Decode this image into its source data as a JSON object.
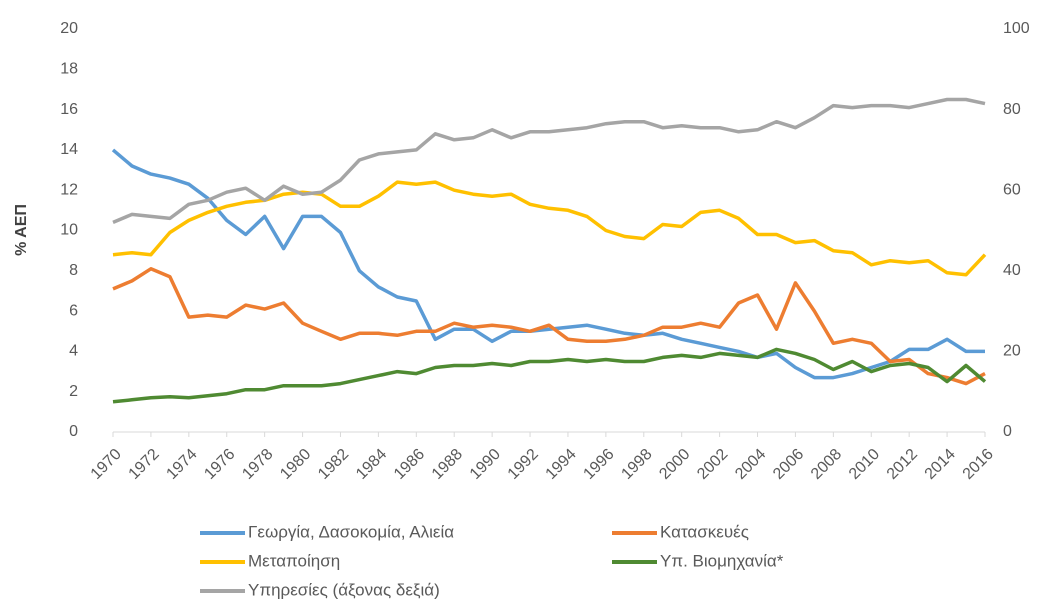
{
  "chart_data": {
    "type": "line",
    "y_label": "% ΑΕΠ",
    "x": [
      1970,
      1971,
      1972,
      1973,
      1974,
      1975,
      1976,
      1977,
      1978,
      1979,
      1980,
      1981,
      1982,
      1983,
      1984,
      1985,
      1986,
      1987,
      1988,
      1989,
      1990,
      1991,
      1992,
      1993,
      1994,
      1995,
      1996,
      1997,
      1998,
      1999,
      2000,
      2001,
      2002,
      2003,
      2004,
      2005,
      2006,
      2007,
      2008,
      2009,
      2010,
      2011,
      2012,
      2013,
      2014,
      2015,
      2016
    ],
    "xlim": [
      1970,
      2016
    ],
    "xticks": [
      1970,
      1972,
      1974,
      1976,
      1978,
      1980,
      1982,
      1984,
      1986,
      1988,
      1990,
      1992,
      1994,
      1996,
      1998,
      2000,
      2002,
      2004,
      2006,
      2008,
      2010,
      2012,
      2014,
      2016
    ],
    "ylim": [
      0,
      20
    ],
    "yticks": [
      0,
      2,
      4,
      6,
      8,
      10,
      12,
      14,
      16,
      18,
      20
    ],
    "y2lim": [
      0,
      100
    ],
    "y2ticks": [
      0,
      20,
      40,
      60,
      80,
      100
    ],
    "grid": false,
    "legend": "bottom",
    "series": [
      {
        "name": "Γεωργία, Δασοκομία, Αλιεία",
        "color": "#5b9bd5",
        "values": [
          14.0,
          13.2,
          12.8,
          12.6,
          12.3,
          11.6,
          10.5,
          9.8,
          10.7,
          9.1,
          10.7,
          10.7,
          9.9,
          8.0,
          7.2,
          6.7,
          6.5,
          4.6,
          5.1,
          5.1,
          4.5,
          5.0,
          5.0,
          5.1,
          5.2,
          5.3,
          5.1,
          4.9,
          4.8,
          4.9,
          4.6,
          4.4,
          4.2,
          4.0,
          3.7,
          3.9,
          3.2,
          2.7,
          2.7,
          2.9,
          3.2,
          3.5,
          4.1,
          4.1,
          4.6,
          4.0,
          4.0
        ]
      },
      {
        "name": "Κατασκευές",
        "color": "#ed7d31",
        "values": [
          7.1,
          7.5,
          8.1,
          7.7,
          5.7,
          5.8,
          5.7,
          6.3,
          6.1,
          6.4,
          5.4,
          5.0,
          4.6,
          4.9,
          4.9,
          4.8,
          5.0,
          5.0,
          5.4,
          5.2,
          5.3,
          5.2,
          5.0,
          5.3,
          4.6,
          4.5,
          4.5,
          4.6,
          4.8,
          5.2,
          5.2,
          5.4,
          5.2,
          6.4,
          6.8,
          5.1,
          7.4,
          6.0,
          4.4,
          4.6,
          4.4,
          3.5,
          3.6,
          2.9,
          2.7,
          2.4,
          2.9
        ]
      },
      {
        "name": "Μεταποίηση",
        "color": "#ffc000",
        "values": [
          8.8,
          8.9,
          8.8,
          9.9,
          10.5,
          10.9,
          11.2,
          11.4,
          11.5,
          11.8,
          11.9,
          11.8,
          11.2,
          11.2,
          11.7,
          12.4,
          12.3,
          12.4,
          12.0,
          11.8,
          11.7,
          11.8,
          11.3,
          11.1,
          11.0,
          10.7,
          10.0,
          9.7,
          9.6,
          10.3,
          10.2,
          10.9,
          11.0,
          10.6,
          9.8,
          9.8,
          9.4,
          9.5,
          9.0,
          8.9,
          8.3,
          8.5,
          8.4,
          8.5,
          7.9,
          7.8,
          8.8
        ]
      },
      {
        "name": "Υπ. Βιομηχανία*",
        "color": "#4f8a32",
        "values": [
          1.5,
          1.6,
          1.7,
          1.75,
          1.7,
          1.8,
          1.9,
          2.1,
          2.1,
          2.3,
          2.3,
          2.3,
          2.4,
          2.6,
          2.8,
          3.0,
          2.9,
          3.2,
          3.3,
          3.3,
          3.4,
          3.3,
          3.5,
          3.5,
          3.6,
          3.5,
          3.6,
          3.5,
          3.5,
          3.7,
          3.8,
          3.7,
          3.9,
          3.8,
          3.7,
          4.1,
          3.9,
          3.6,
          3.1,
          3.5,
          3.0,
          3.3,
          3.4,
          3.2,
          2.5,
          3.3,
          2.5
        ]
      },
      {
        "name": "Υπηρεσίες (άξονας δεξιά)",
        "color": "#a5a5a5",
        "axis": "y2",
        "values": [
          52,
          54,
          53.5,
          53,
          56.5,
          57.5,
          59.5,
          60.5,
          57.5,
          61,
          59,
          59.5,
          62.5,
          67.5,
          69,
          69.5,
          70,
          74,
          72.5,
          73,
          75,
          73,
          74.5,
          74.5,
          75,
          75.5,
          76.5,
          77,
          77,
          75.5,
          76,
          75.5,
          75.5,
          74.5,
          75,
          77,
          75.5,
          78,
          81,
          80.5,
          81,
          81,
          80.5,
          81.5,
          82.5,
          82.5,
          81.5
        ]
      }
    ]
  }
}
